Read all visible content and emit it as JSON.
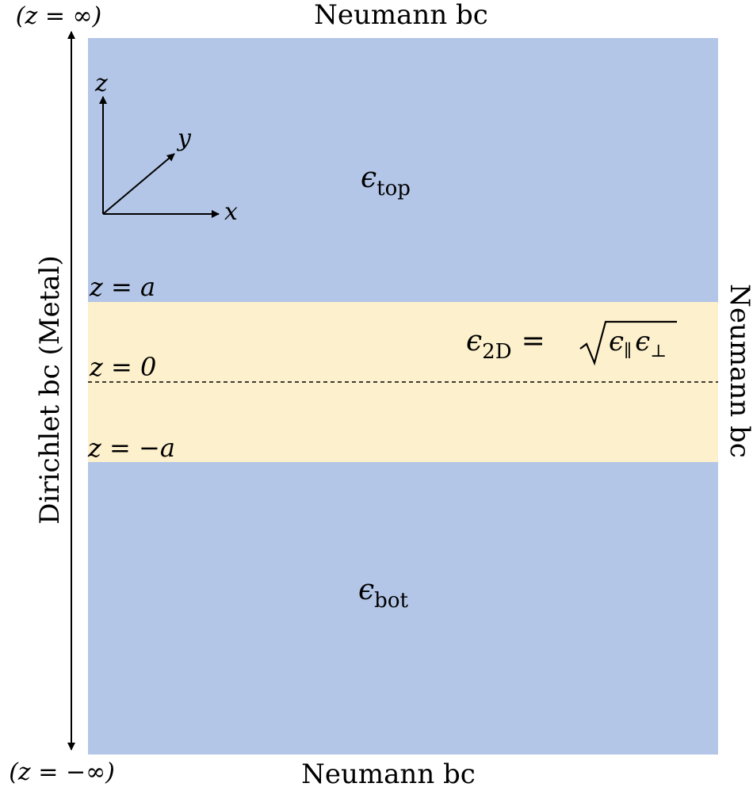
{
  "boundaries": {
    "top_label": "Neumann bc",
    "bottom_label": "Neumann bc",
    "right_label": "Neumann bc",
    "left_label": "Dirichlet bc (Metal)"
  },
  "ends": {
    "top": "(z = ∞)",
    "bottom": "(z = −∞)"
  },
  "axes": {
    "z": "z",
    "y": "y",
    "x": "x"
  },
  "levels": {
    "upper": "z = a",
    "middle": "z = 0",
    "lower": "z = −a"
  },
  "regions": {
    "top": {
      "symbol": "ϵ",
      "sub": "top"
    },
    "bottom": {
      "symbol": "ϵ",
      "sub": "bot"
    },
    "slab": {
      "symbol": "ϵ",
      "sub": "2D",
      "eq": "=",
      "sqrt": "√",
      "inner1": "ϵ",
      "inner1_sub": "∥",
      "inner2": "ϵ",
      "inner2_sub": "⊥"
    }
  },
  "colors": {
    "dielectric": "#b3c6e7",
    "slab": "#fdf0cc",
    "ink": "#000000"
  }
}
